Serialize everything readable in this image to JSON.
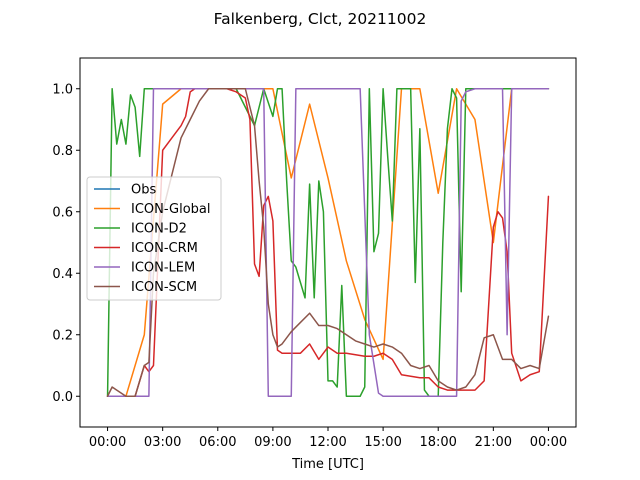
{
  "chart_data": {
    "type": "line",
    "title": "Falkenberg, Clct, 20211002",
    "xlabel": "Time [UTC]",
    "ylabel": "",
    "xlim": [
      -1.5,
      25.5
    ],
    "ylim": [
      -0.1,
      1.1
    ],
    "xticks": [
      0,
      3,
      6,
      9,
      12,
      15,
      18,
      21,
      24
    ],
    "xtick_labels": [
      "00:00",
      "03:00",
      "06:00",
      "09:00",
      "12:00",
      "15:00",
      "18:00",
      "21:00",
      "00:00"
    ],
    "yticks": [
      0.0,
      0.2,
      0.4,
      0.6,
      0.8,
      1.0
    ],
    "ytick_labels": [
      "0.0",
      "0.2",
      "0.4",
      "0.6",
      "0.8",
      "1.0"
    ],
    "legend_position": "center-left",
    "series": [
      {
        "name": "Obs",
        "color": "#1f77b4",
        "x": [],
        "y": []
      },
      {
        "name": "ICON-Global",
        "color": "#ff7f0e",
        "x": [
          0,
          1,
          2,
          3,
          4,
          5,
          6,
          7,
          8,
          9,
          10,
          11,
          12,
          13,
          14,
          15,
          16,
          17,
          18,
          19,
          20,
          21,
          22,
          23,
          24
        ],
        "y": [
          0.0,
          0.0,
          0.2,
          0.95,
          1.0,
          1.0,
          1.0,
          1.0,
          1.0,
          1.0,
          0.71,
          0.95,
          0.71,
          0.44,
          0.25,
          0.12,
          1.0,
          1.0,
          0.66,
          1.0,
          0.9,
          0.5,
          1.0,
          1.0,
          1.0
        ]
      },
      {
        "name": "ICON-D2",
        "color": "#2ca02c",
        "x": [
          0,
          0.25,
          0.5,
          0.75,
          1.0,
          1.25,
          1.5,
          1.75,
          2.0,
          2.5,
          3,
          4,
          5,
          6,
          7,
          8,
          8.5,
          9,
          9.25,
          9.5,
          9.75,
          10.0,
          10.25,
          10.5,
          10.75,
          11.0,
          11.25,
          11.5,
          11.75,
          12.0,
          12.25,
          12.5,
          12.75,
          13.0,
          13.25,
          13.5,
          13.75,
          14.0,
          14.25,
          14.5,
          14.75,
          15.0,
          15.25,
          15.5,
          15.75,
          16.0,
          16.25,
          16.5,
          16.75,
          17.0,
          17.25,
          17.5,
          17.75,
          18.0,
          18.25,
          18.5,
          18.75,
          19.0,
          19.25,
          19.5,
          19.75,
          20.0,
          20.5,
          21,
          22,
          23,
          24
        ],
        "y": [
          0.0,
          1.0,
          0.82,
          0.9,
          0.82,
          0.98,
          0.94,
          0.78,
          1.0,
          1.0,
          1.0,
          1.0,
          1.0,
          1.0,
          1.0,
          0.88,
          1.0,
          0.91,
          1.0,
          1.0,
          0.7,
          0.44,
          0.42,
          0.37,
          0.32,
          0.69,
          0.32,
          0.7,
          0.6,
          0.05,
          0.05,
          0.03,
          0.36,
          0.0,
          0.0,
          0.0,
          0.0,
          0.03,
          1.0,
          0.47,
          0.53,
          1.0,
          0.78,
          0.57,
          1.0,
          1.0,
          1.0,
          1.0,
          0.37,
          0.87,
          0.02,
          0.0,
          0.0,
          0.0,
          0.5,
          0.87,
          1.0,
          0.97,
          0.34,
          1.0,
          1.0,
          1.0,
          1.0,
          1.0,
          1.0,
          1.0,
          1.0
        ]
      },
      {
        "name": "ICON-CRM",
        "color": "#d62728",
        "x": [
          0,
          0.5,
          1.0,
          1.5,
          2.0,
          2.25,
          2.5,
          2.75,
          3.0,
          3.5,
          4.0,
          4.25,
          4.5,
          4.75,
          5.0,
          5.5,
          6.0,
          6.5,
          7.0,
          7.5,
          7.75,
          8.0,
          8.25,
          8.5,
          8.75,
          9.0,
          9.25,
          9.5,
          10.0,
          10.5,
          11.0,
          11.5,
          12.0,
          12.5,
          13.0,
          13.5,
          14.0,
          14.5,
          15.0,
          15.5,
          16.0,
          16.5,
          17.0,
          17.5,
          18.0,
          18.5,
          19.0,
          19.5,
          20.0,
          20.5,
          21.0,
          21.25,
          21.5,
          21.75,
          22.0,
          22.5,
          23.0,
          23.5,
          24.0
        ],
        "y": [
          0.0,
          0.0,
          0.0,
          0.0,
          0.1,
          0.08,
          0.1,
          0.45,
          0.8,
          0.84,
          0.88,
          0.91,
          0.99,
          1.0,
          1.0,
          1.0,
          1.0,
          1.0,
          0.99,
          0.97,
          0.9,
          0.43,
          0.39,
          0.62,
          0.65,
          0.57,
          0.15,
          0.14,
          0.14,
          0.14,
          0.17,
          0.12,
          0.16,
          0.14,
          0.14,
          0.135,
          0.13,
          0.13,
          0.14,
          0.12,
          0.07,
          0.065,
          0.06,
          0.06,
          0.03,
          0.02,
          0.02,
          0.02,
          0.02,
          0.05,
          0.55,
          0.6,
          0.58,
          0.47,
          0.14,
          0.05,
          0.07,
          0.08,
          0.65
        ]
      },
      {
        "name": "ICON-LEM",
        "color": "#9467bd",
        "x": [
          0,
          2.25,
          2.5,
          8.5,
          8.75,
          10.0,
          10.25,
          13.75,
          14.25,
          14.75,
          15.0,
          19.0,
          19.25,
          19.5,
          20.0,
          21.0,
          21.5,
          21.75,
          22.0,
          23.0,
          24.0
        ],
        "y": [
          0.0,
          0.0,
          1.0,
          1.0,
          0.0,
          0.0,
          1.0,
          1.0,
          0.2,
          0.01,
          0.0,
          0.0,
          0.96,
          0.99,
          1.0,
          1.0,
          1.0,
          0.2,
          1.0,
          1.0,
          1.0
        ]
      },
      {
        "name": "ICON-SCM",
        "color": "#8c564b",
        "x": [
          0,
          0.25,
          0.5,
          1.0,
          1.5,
          2.0,
          2.25,
          2.5,
          3.0,
          3.5,
          4.0,
          4.5,
          5.0,
          5.5,
          6.0,
          6.5,
          7.0,
          7.5,
          8.0,
          8.25,
          8.5,
          8.75,
          9.0,
          9.25,
          9.5,
          10.0,
          10.5,
          11.0,
          11.5,
          12.0,
          12.5,
          13.0,
          13.5,
          14.0,
          14.5,
          15.0,
          15.5,
          16.0,
          16.5,
          17.0,
          17.5,
          18.0,
          18.5,
          19.0,
          19.5,
          20.0,
          20.5,
          21.0,
          21.5,
          22.0,
          22.5,
          23.0,
          23.5,
          24.0
        ],
        "y": [
          0.0,
          0.03,
          0.02,
          0.0,
          0.0,
          0.1,
          0.11,
          0.4,
          0.6,
          0.72,
          0.84,
          0.9,
          0.96,
          1.0,
          1.0,
          1.0,
          1.0,
          1.0,
          0.88,
          0.7,
          0.55,
          0.3,
          0.2,
          0.16,
          0.17,
          0.21,
          0.24,
          0.27,
          0.23,
          0.23,
          0.22,
          0.2,
          0.18,
          0.17,
          0.16,
          0.17,
          0.16,
          0.14,
          0.1,
          0.09,
          0.1,
          0.05,
          0.03,
          0.02,
          0.03,
          0.07,
          0.19,
          0.2,
          0.12,
          0.12,
          0.09,
          0.1,
          0.09,
          0.26
        ]
      }
    ]
  }
}
